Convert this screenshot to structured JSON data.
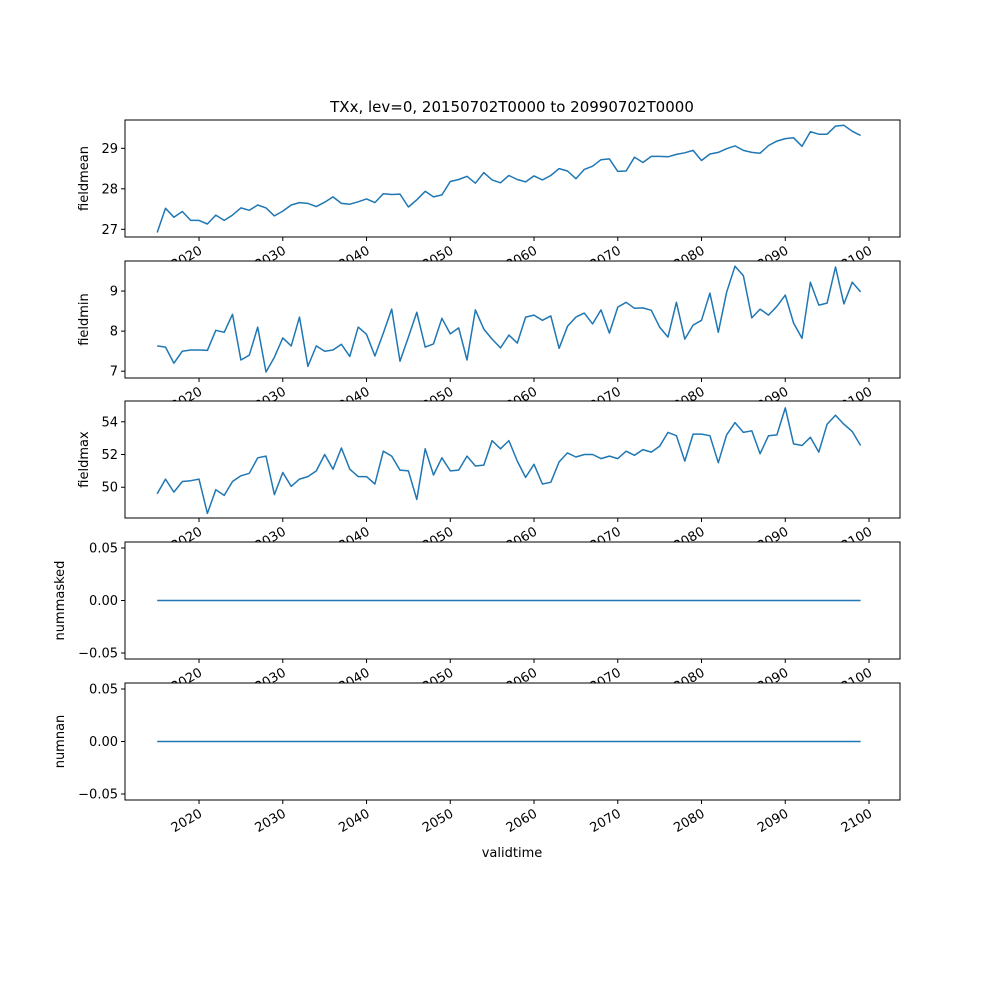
{
  "chart_data": {
    "type": "line",
    "title": "TXx, lev=0, 20150702T0000 to 20990702T0000",
    "xlabel": "validtime",
    "line_color": "#1f77b4",
    "x_start_year": 2015,
    "xlim": [
      2011.16,
      2103.7
    ],
    "x_ticks": [
      2020,
      2030,
      2040,
      2050,
      2060,
      2070,
      2080,
      2090,
      2100
    ],
    "x_tick_labels": [
      "2020",
      "2030",
      "2040",
      "2050",
      "2060",
      "2070",
      "2080",
      "2090",
      "2100"
    ],
    "panels": [
      {
        "ylabel": "fieldmean",
        "ylim": [
          26.81,
          29.7
        ],
        "y_ticks": [
          27,
          28,
          29
        ],
        "y_tick_labels": [
          "27",
          "28",
          "29"
        ],
        "values": [
          26.92,
          27.52,
          27.3,
          27.44,
          27.22,
          27.22,
          27.13,
          27.35,
          27.22,
          27.35,
          27.53,
          27.47,
          27.6,
          27.53,
          27.33,
          27.45,
          27.6,
          27.66,
          27.64,
          27.56,
          27.67,
          27.8,
          27.64,
          27.62,
          27.68,
          27.75,
          27.66,
          27.88,
          27.86,
          27.87,
          27.55,
          27.73,
          27.94,
          27.8,
          27.85,
          28.18,
          28.23,
          28.31,
          28.14,
          28.4,
          28.22,
          28.15,
          28.33,
          28.23,
          28.17,
          28.32,
          28.22,
          28.33,
          28.5,
          28.44,
          28.25,
          28.48,
          28.56,
          28.72,
          28.74,
          28.43,
          28.44,
          28.78,
          28.65,
          28.8,
          28.8,
          28.79,
          28.85,
          28.89,
          28.95,
          28.7,
          28.86,
          28.9,
          28.99,
          29.06,
          28.95,
          28.9,
          28.88,
          29.07,
          29.18,
          29.24,
          29.26,
          29.05,
          29.41,
          29.35,
          29.35,
          29.55,
          29.57,
          29.42,
          29.32
        ]
      },
      {
        "ylabel": "fieldmin",
        "ylim": [
          6.83,
          9.75
        ],
        "y_ticks": [
          7,
          8,
          9
        ],
        "y_tick_labels": [
          "7",
          "8",
          "9"
        ],
        "values": [
          7.63,
          7.6,
          7.2,
          7.5,
          7.53,
          7.53,
          7.52,
          8.02,
          7.97,
          8.42,
          7.28,
          7.4,
          8.1,
          6.98,
          7.35,
          7.83,
          7.63,
          8.35,
          7.12,
          7.63,
          7.5,
          7.53,
          7.67,
          7.37,
          8.1,
          7.92,
          7.38,
          7.95,
          8.55,
          7.25,
          7.85,
          8.47,
          7.6,
          7.68,
          8.32,
          7.93,
          8.08,
          7.28,
          8.53,
          8.05,
          7.8,
          7.58,
          7.9,
          7.7,
          8.35,
          8.4,
          8.27,
          8.38,
          7.57,
          8.12,
          8.35,
          8.45,
          8.18,
          8.53,
          7.95,
          8.6,
          8.72,
          8.57,
          8.58,
          8.52,
          8.1,
          7.85,
          8.72,
          7.8,
          8.15,
          8.27,
          8.95,
          7.97,
          8.97,
          9.62,
          9.38,
          8.33,
          8.55,
          8.4,
          8.62,
          8.9,
          8.2,
          7.82,
          9.22,
          8.65,
          8.7,
          9.6,
          8.68,
          9.22,
          8.98
        ]
      },
      {
        "ylabel": "fieldmax",
        "ylim": [
          48.12,
          55.27
        ],
        "y_ticks": [
          50,
          52,
          54
        ],
        "y_tick_labels": [
          "50",
          "52",
          "54"
        ],
        "values": [
          49.6,
          50.5,
          49.7,
          50.35,
          50.4,
          50.5,
          48.4,
          49.85,
          49.5,
          50.35,
          50.7,
          50.85,
          51.8,
          51.9,
          49.55,
          50.9,
          50.05,
          50.5,
          50.65,
          51.0,
          52.0,
          51.1,
          52.4,
          51.1,
          50.65,
          50.65,
          50.2,
          52.2,
          51.9,
          51.05,
          51.0,
          49.25,
          52.35,
          50.75,
          51.8,
          51.0,
          51.05,
          51.9,
          51.3,
          51.35,
          52.85,
          52.35,
          52.85,
          51.6,
          50.6,
          51.4,
          50.2,
          50.3,
          51.55,
          52.1,
          51.85,
          52.0,
          52.0,
          51.75,
          51.9,
          51.75,
          52.2,
          51.95,
          52.3,
          52.15,
          52.5,
          53.35,
          53.15,
          51.6,
          53.25,
          53.25,
          53.15,
          51.5,
          53.2,
          53.95,
          53.35,
          53.45,
          52.05,
          53.15,
          53.2,
          54.85,
          52.65,
          52.55,
          53.05,
          52.15,
          53.85,
          54.4,
          53.85,
          53.4,
          52.55
        ]
      },
      {
        "ylabel": "nummasked",
        "ylim": [
          -0.0557,
          0.0557
        ],
        "y_ticks": [
          -0.05,
          0.0,
          0.05
        ],
        "y_tick_labels": [
          "−0.05",
          "0.00",
          "0.05"
        ],
        "constant_value": 0
      },
      {
        "ylabel": "numnan",
        "ylim": [
          -0.0557,
          0.0557
        ],
        "y_ticks": [
          -0.05,
          0.0,
          0.05
        ],
        "y_tick_labels": [
          "−0.05",
          "0.00",
          "0.05"
        ],
        "constant_value": 0
      }
    ]
  }
}
